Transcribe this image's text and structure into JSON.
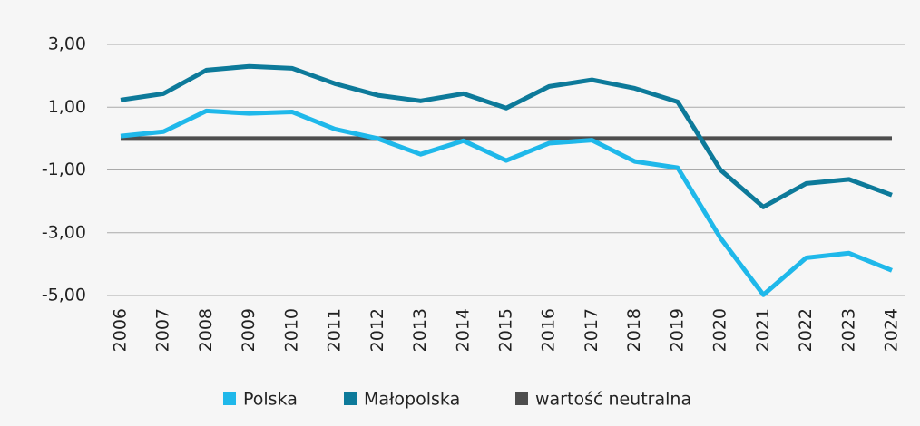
{
  "chart_data": {
    "type": "line",
    "categories": [
      "2006",
      "2007",
      "2008",
      "2009",
      "2010",
      "2011",
      "2012",
      "2013",
      "2014",
      "2015",
      "2016",
      "2017",
      "2018",
      "2019",
      "2020",
      "2021",
      "2022",
      "2023",
      "2024"
    ],
    "series": [
      {
        "name": "Polska",
        "color": "#1fb8ea",
        "values": [
          0.08,
          0.22,
          0.88,
          0.8,
          0.85,
          0.3,
          0.0,
          -0.5,
          -0.07,
          -0.7,
          -0.15,
          -0.05,
          -0.73,
          -0.93,
          -3.17,
          -4.98,
          -3.8,
          -3.65,
          -4.2
        ]
      },
      {
        "name": "Małopolska",
        "color": "#0d7a9a",
        "values": [
          1.23,
          1.43,
          2.18,
          2.3,
          2.24,
          1.75,
          1.38,
          1.2,
          1.43,
          0.97,
          1.66,
          1.87,
          1.6,
          1.17,
          -1.0,
          -2.18,
          -1.43,
          -1.3,
          -1.8
        ]
      },
      {
        "name": "wartość neutralna",
        "color": "#4d4d4d",
        "values": [
          0,
          0,
          0,
          0,
          0,
          0,
          0,
          0,
          0,
          0,
          0,
          0,
          0,
          0,
          0,
          0,
          0,
          0,
          0
        ]
      }
    ],
    "ylim": [
      -5,
      3
    ],
    "yticks": [
      {
        "value": 3,
        "label": "3,00"
      },
      {
        "value": 1,
        "label": "1,00"
      },
      {
        "value": -1,
        "label": "-1,00"
      },
      {
        "value": -3,
        "label": "-3,00"
      },
      {
        "value": -5,
        "label": "-5,00"
      }
    ],
    "grid": true,
    "legend": "bottom"
  }
}
